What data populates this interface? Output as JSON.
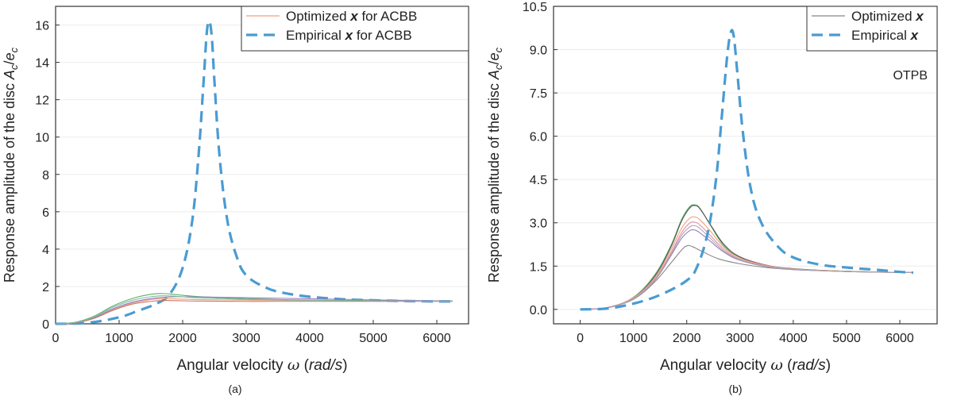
{
  "panels": [
    {
      "caption": "(a)",
      "chart_data": {
        "type": "line",
        "title": "",
        "xlabel": "Angular velocity ω (rad/s)",
        "xlabel_parts": [
          "Angular velocity ",
          "ω",
          " (",
          "rad/s",
          ")"
        ],
        "ylabel": "Response amplitude of the disc Ac/ec",
        "ylabel_parts": [
          "Response amplitude of the disc ",
          "A",
          "c",
          "/",
          "e",
          "c"
        ],
        "xlim": [
          0,
          6500
        ],
        "ylim": [
          0,
          17
        ],
        "xticks": [
          0,
          1000,
          2000,
          3000,
          4000,
          5000,
          6000
        ],
        "yticks": [
          0,
          2,
          4,
          6,
          8,
          10,
          12,
          14,
          16
        ],
        "ytick_labels": [
          "0",
          "2",
          "4",
          "6",
          "8",
          "10",
          "12",
          "14",
          "16"
        ],
        "grid": true,
        "legend_placement": "top-right",
        "legend": [
          {
            "parts": [
              "Optimized ",
              "x",
              " for ACBB"
            ],
            "style": "thin",
            "color": "#f2a07b"
          },
          {
            "parts": [
              "Empirical ",
              "x",
              " for ACBB"
            ],
            "style": "dashed",
            "color": "#4a9bd1"
          }
        ],
        "series": [
          {
            "style": "dashed",
            "color": "#4a9bd1",
            "x": [
              0,
              500,
              1000,
              1300,
              1600,
              1800,
              2000,
              2150,
              2250,
              2330,
              2380,
              2420,
              2460,
              2500,
              2580,
              2700,
              2850,
              3000,
              3300,
              3600,
              4000,
              4500,
              5000,
              5500,
              6000,
              6250
            ],
            "y": [
              0,
              0.05,
              0.35,
              0.7,
              1.1,
              1.6,
              3.0,
              5.5,
              9.0,
              13.0,
              15.6,
              16.2,
              15.3,
              13.0,
              9.0,
              5.6,
              3.6,
              2.6,
              1.95,
              1.65,
              1.45,
              1.32,
              1.26,
              1.22,
              1.2,
              1.2
            ]
          },
          {
            "style": "thin",
            "color": "#f2a07b",
            "x": [
              0,
              300,
              600,
              900,
              1200,
              1500,
              1700,
              1900,
              2200,
              2600,
              3000,
              3500,
              4000,
              5000,
              6000,
              6250
            ],
            "y": [
              0,
              0.05,
              0.3,
              0.75,
              1.1,
              1.3,
              1.35,
              1.33,
              1.3,
              1.28,
              1.27,
              1.26,
              1.25,
              1.24,
              1.22,
              1.22
            ]
          },
          {
            "style": "thin",
            "color": "#5bb06a",
            "x": [
              0,
              300,
              600,
              900,
              1200,
              1500,
              1700,
              1900,
              2200,
              2600,
              3000,
              3500,
              4000,
              5000,
              6000,
              6250
            ],
            "y": [
              0,
              0.08,
              0.4,
              0.95,
              1.35,
              1.58,
              1.62,
              1.56,
              1.47,
              1.4,
              1.35,
              1.3,
              1.27,
              1.24,
              1.22,
              1.22
            ]
          },
          {
            "style": "thin",
            "color": "#9a7cc4",
            "x": [
              0,
              300,
              600,
              900,
              1200,
              1500,
              1700,
              1900,
              2200,
              2600,
              3000,
              3500,
              4000,
              5000,
              6000,
              6250
            ],
            "y": [
              0,
              0.06,
              0.32,
              0.8,
              1.15,
              1.35,
              1.42,
              1.45,
              1.44,
              1.42,
              1.4,
              1.37,
              1.34,
              1.28,
              1.23,
              1.22
            ]
          },
          {
            "style": "thin",
            "color": "#c87a6a",
            "x": [
              0,
              300,
              600,
              900,
              1200,
              1500,
              1700,
              1900,
              2200,
              2600,
              3000,
              3500,
              4000,
              5000,
              6000,
              6250
            ],
            "y": [
              0,
              0.05,
              0.28,
              0.72,
              1.05,
              1.2,
              1.25,
              1.24,
              1.22,
              1.21,
              1.2,
              1.2,
              1.2,
              1.2,
              1.2,
              1.2
            ]
          },
          {
            "style": "thin",
            "color": "#7fb9a3",
            "x": [
              0,
              300,
              600,
              900,
              1200,
              1500,
              1700,
              1900,
              2200,
              2600,
              3000,
              3500,
              4000,
              5000,
              6000,
              6250
            ],
            "y": [
              0,
              0.07,
              0.36,
              0.88,
              1.25,
              1.45,
              1.5,
              1.47,
              1.4,
              1.35,
              1.31,
              1.28,
              1.26,
              1.23,
              1.21,
              1.21
            ]
          }
        ]
      }
    },
    {
      "caption": "(b)",
      "annotation": "OTPB",
      "chart_data": {
        "type": "line",
        "title": "",
        "xlabel": "Angular velocity ω (rad/s)",
        "xlabel_parts": [
          "Angular velocity ",
          "ω",
          " (",
          "rad/s",
          ")"
        ],
        "ylabel": "Response amplitude of the disc Ac/ec",
        "ylabel_parts": [
          "Response amplitude of the disc ",
          "A",
          "c",
          "/",
          "e",
          "c"
        ],
        "xlim": [
          -500,
          6700
        ],
        "ylim": [
          -0.5,
          10.5
        ],
        "xticks": [
          0,
          1000,
          2000,
          3000,
          4000,
          5000,
          6000
        ],
        "yticks": [
          0,
          1.5,
          3,
          4.5,
          6,
          7.5,
          9,
          10.5
        ],
        "ytick_labels": [
          "0.0",
          "1.5",
          "3.0",
          "4.5",
          "6.0",
          "7.5",
          "9.0",
          "10.5"
        ],
        "grid": true,
        "legend_placement": "top-right",
        "legend": [
          {
            "parts": [
              "Optimized ",
              "x",
              ""
            ],
            "style": "thin",
            "color": "#888888"
          },
          {
            "parts": [
              "Empirical ",
              "x",
              ""
            ],
            "style": "dashed",
            "color": "#4a9bd1"
          }
        ],
        "series": [
          {
            "style": "thin",
            "color": "#888888",
            "x": [
              0,
              500,
              1000,
              1400,
              1700,
              1900,
              2000,
              2100,
              2300,
              2600,
              3000,
              3500,
              4000,
              5000,
              6000,
              6250
            ],
            "y": [
              0,
              0.05,
              0.35,
              0.95,
              1.6,
              2.05,
              2.2,
              2.18,
              2.0,
              1.75,
              1.58,
              1.45,
              1.38,
              1.32,
              1.28,
              1.28
            ]
          },
          {
            "style": "thin",
            "color": "#5bb06a",
            "x": [
              0,
              500,
              1000,
              1400,
              1700,
              1900,
              2050,
              2150,
              2250,
              2450,
              2700,
              3000,
              3500,
              4000,
              5000,
              6000,
              6250
            ],
            "y": [
              0,
              0.06,
              0.42,
              1.2,
              2.2,
              3.1,
              3.55,
              3.62,
              3.5,
              2.9,
              2.2,
              1.8,
              1.52,
              1.4,
              1.32,
              1.28,
              1.28
            ]
          },
          {
            "style": "thin",
            "color": "#555555",
            "x": [
              0,
              500,
              1000,
              1400,
              1700,
              1900,
              2050,
              2150,
              2250,
              2450,
              2700,
              3000,
              3500,
              4000,
              5000,
              6000,
              6250
            ],
            "y": [
              0,
              0.06,
              0.4,
              1.15,
              2.15,
              3.05,
              3.5,
              3.6,
              3.48,
              2.92,
              2.25,
              1.82,
              1.53,
              1.41,
              1.32,
              1.28,
              1.28
            ]
          },
          {
            "style": "thin",
            "color": "#f2a07b",
            "x": [
              0,
              500,
              1000,
              1400,
              1700,
              1900,
              2050,
              2150,
              2250,
              2450,
              2700,
              3000,
              3500,
              4000,
              5000,
              6000,
              6250
            ],
            "y": [
              0,
              0.06,
              0.4,
              1.1,
              2.05,
              2.8,
              3.15,
              3.2,
              3.1,
              2.7,
              2.15,
              1.78,
              1.52,
              1.4,
              1.32,
              1.28,
              1.28
            ]
          },
          {
            "style": "thin",
            "color": "#e58ba8",
            "x": [
              0,
              500,
              1000,
              1400,
              1700,
              1900,
              2050,
              2150,
              2250,
              2450,
              2700,
              3000,
              3500,
              4000,
              5000,
              6000,
              6250
            ],
            "y": [
              0,
              0.06,
              0.38,
              1.05,
              1.95,
              2.65,
              2.98,
              3.02,
              2.92,
              2.55,
              2.08,
              1.74,
              1.5,
              1.39,
              1.31,
              1.28,
              1.28
            ]
          },
          {
            "style": "thin",
            "color": "#9a7cc4",
            "x": [
              0,
              500,
              1000,
              1400,
              1700,
              1900,
              2050,
              2150,
              2250,
              2450,
              2700,
              3000,
              3500,
              4000,
              5000,
              6000,
              6250
            ],
            "y": [
              0,
              0.05,
              0.36,
              1.0,
              1.85,
              2.45,
              2.72,
              2.75,
              2.65,
              2.35,
              1.98,
              1.7,
              1.48,
              1.38,
              1.31,
              1.28,
              1.28
            ]
          },
          {
            "style": "thin",
            "color": "#a9a9a9",
            "x": [
              0,
              500,
              1000,
              1400,
              1700,
              1900,
              2050,
              2150,
              2250,
              2450,
              2700,
              3000,
              3500,
              4000,
              5000,
              6000,
              6250
            ],
            "y": [
              0,
              0.05,
              0.37,
              1.02,
              1.9,
              2.55,
              2.85,
              2.9,
              2.8,
              2.45,
              2.02,
              1.72,
              1.49,
              1.39,
              1.31,
              1.28,
              1.28
            ]
          },
          {
            "style": "dashed",
            "color": "#4a9bd1",
            "x": [
              0,
              500,
              1000,
              1500,
              2000,
              2200,
              2400,
              2550,
              2650,
              2750,
              2820,
              2880,
              2950,
              3050,
              3200,
              3400,
              3700,
              4000,
              4500,
              5000,
              5500,
              6000,
              6250
            ],
            "y": [
              0,
              0.03,
              0.2,
              0.5,
              1.0,
              1.5,
              2.7,
              4.5,
              6.5,
              8.6,
              9.55,
              9.5,
              8.2,
              6.2,
              4.2,
              3.0,
              2.2,
              1.8,
              1.55,
              1.45,
              1.38,
              1.3,
              1.27
            ]
          }
        ]
      }
    }
  ]
}
